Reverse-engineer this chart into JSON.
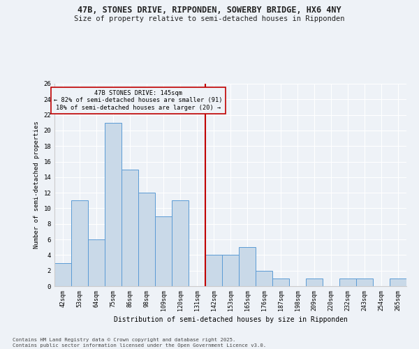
{
  "title1": "47B, STONES DRIVE, RIPPONDEN, SOWERBY BRIDGE, HX6 4NY",
  "title2": "Size of property relative to semi-detached houses in Ripponden",
  "xlabel": "Distribution of semi-detached houses by size in Ripponden",
  "ylabel": "Number of semi-detached properties",
  "categories": [
    "42sqm",
    "53sqm",
    "64sqm",
    "75sqm",
    "86sqm",
    "98sqm",
    "109sqm",
    "120sqm",
    "131sqm",
    "142sqm",
    "153sqm",
    "165sqm",
    "176sqm",
    "187sqm",
    "198sqm",
    "209sqm",
    "220sqm",
    "232sqm",
    "243sqm",
    "254sqm",
    "265sqm"
  ],
  "values": [
    3,
    11,
    6,
    21,
    15,
    12,
    9,
    11,
    0,
    4,
    4,
    5,
    2,
    1,
    0,
    1,
    0,
    1,
    1,
    0,
    1
  ],
  "bar_color": "#c9d9e8",
  "bar_edge_color": "#5b9bd5",
  "vline_x_index": 9,
  "vline_color": "#c00000",
  "annotation_title": "47B STONES DRIVE: 145sqm",
  "annotation_line1": "← 82% of semi-detached houses are smaller (91)",
  "annotation_line2": "18% of semi-detached houses are larger (20) →",
  "annotation_box_color": "#c00000",
  "ylim": [
    0,
    26
  ],
  "yticks": [
    0,
    2,
    4,
    6,
    8,
    10,
    12,
    14,
    16,
    18,
    20,
    22,
    24,
    26
  ],
  "background_color": "#eef2f7",
  "grid_color": "#ffffff",
  "footer1": "Contains HM Land Registry data © Crown copyright and database right 2025.",
  "footer2": "Contains public sector information licensed under the Open Government Licence v3.0."
}
